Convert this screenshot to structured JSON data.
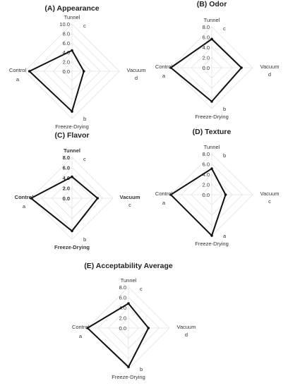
{
  "chart_data": [
    {
      "type": "radar",
      "title": "(A) Appearance",
      "categories": [
        "Tunnel",
        "Vacuum",
        "Freeze-Drying",
        "Control"
      ],
      "significance": [
        "c",
        "d",
        "b",
        "a"
      ],
      "ticks": [
        "0.0",
        "2.0",
        "4.0",
        "6.0",
        "8.0",
        "10.0"
      ],
      "rlim": [
        0,
        10
      ],
      "values": [
        4.4,
        2.5,
        8.5,
        9.0
      ],
      "bold_labels": false
    },
    {
      "type": "radar",
      "title": "(B) Odor",
      "categories": [
        "Tunnel",
        "Vacuum",
        "Freeze-Drying",
        "Control"
      ],
      "significance": [
        "c",
        "d",
        "b",
        "a"
      ],
      "ticks": [
        "0.0",
        "2.0",
        "4.0",
        "6.0",
        "8.0"
      ],
      "rlim": [
        0,
        8
      ],
      "values": [
        5.6,
        5.8,
        6.6,
        8.0
      ],
      "bold_labels": false
    },
    {
      "type": "radar",
      "title": "(C) Flavor",
      "categories": [
        "Tunnel",
        "Vacuum",
        "Freeze-Drying",
        "Control"
      ],
      "significance": [
        "c",
        "c",
        "b",
        "a"
      ],
      "ticks": [
        "0.0",
        "2.0",
        "4.0",
        "6.0",
        "8.0"
      ],
      "rlim": [
        0,
        8
      ],
      "values": [
        4.2,
        5.0,
        6.4,
        8.0
      ],
      "bold_labels": true
    },
    {
      "type": "radar",
      "title": "(D) Texture",
      "categories": [
        "Tunnel",
        "Vacuum",
        "Freeze-Drying",
        "Control"
      ],
      "significance": [
        "b",
        "c",
        "a",
        "a"
      ],
      "ticks": [
        "0.0",
        "2.0",
        "4.0",
        "6.0",
        "8.0"
      ],
      "rlim": [
        0,
        8
      ],
      "values": [
        5.1,
        2.7,
        8.0,
        8.0
      ],
      "bold_labels": false
    },
    {
      "type": "radar",
      "title": "(E) Acceptability Average",
      "categories": [
        "Tunnel",
        "Vacuum",
        "Freeze-Drying",
        "Control"
      ],
      "significance": [
        "c",
        "d",
        "b",
        "a"
      ],
      "ticks": [
        "0.0",
        "2.0",
        "4.0",
        "6.0",
        "8.0"
      ],
      "rlim": [
        0,
        8
      ],
      "values": [
        4.8,
        3.9,
        7.6,
        8.0
      ],
      "bold_labels": false
    }
  ]
}
